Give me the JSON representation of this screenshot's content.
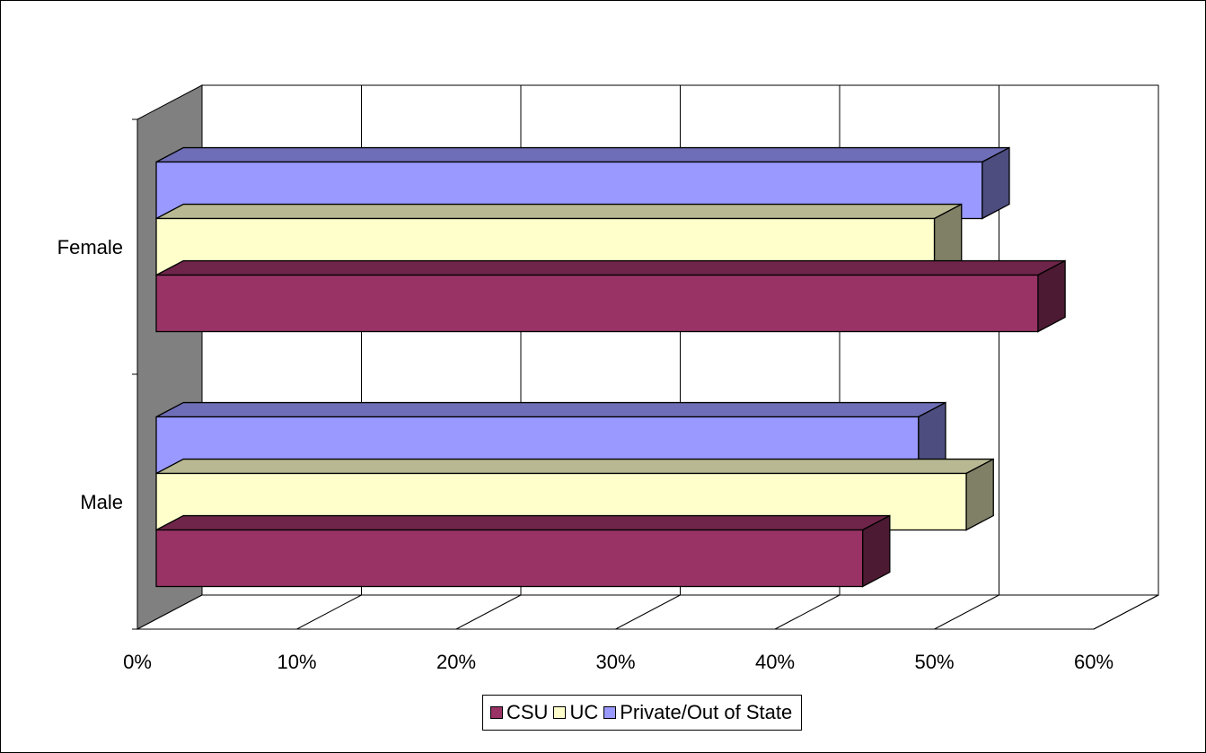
{
  "chart_data": {
    "type": "bar",
    "orientation": "horizontal",
    "style": "3d",
    "title": "",
    "xlabel": "",
    "ylabel": "",
    "categories": [
      "Female",
      "Male"
    ],
    "series": [
      {
        "name": "CSU",
        "values": [
          0.565,
          0.455
        ],
        "color": "#993366"
      },
      {
        "name": "UC",
        "values": [
          0.5,
          0.52
        ],
        "color": "#FFFFCC"
      },
      {
        "name": "Private/Out of State",
        "values": [
          0.53,
          0.49
        ],
        "color": "#9999FF"
      }
    ],
    "xlim": [
      0,
      0.6
    ],
    "x_ticks": [
      0,
      0.1,
      0.2,
      0.3,
      0.4,
      0.5,
      0.6
    ],
    "x_tick_labels": [
      "0%",
      "10%",
      "20%",
      "30%",
      "40%",
      "50%",
      "60%"
    ],
    "grid": true,
    "legend_position": "bottom"
  }
}
